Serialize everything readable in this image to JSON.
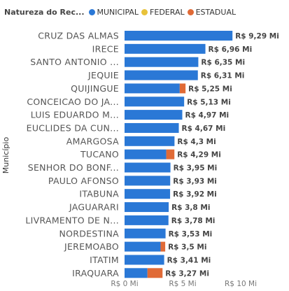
{
  "legend": {
    "title": "Natureza do Rec...",
    "items": [
      {
        "label": "MUNICIPAL",
        "color": "#2a78d6"
      },
      {
        "label": "FEDERAL",
        "color": "#e8c23a"
      },
      {
        "label": "ESTADUAL",
        "color": "#e06a36"
      }
    ]
  },
  "chart_data": {
    "type": "bar",
    "orientation": "horizontal",
    "stacked": true,
    "ylabel": "Município",
    "xlabel": "",
    "xlim": [
      0,
      10
    ],
    "xticks": [
      {
        "value": 0,
        "label": "R$ 0 Mi"
      },
      {
        "value": 5,
        "label": "R$ 5 Mi"
      },
      {
        "value": 10,
        "label": "R$ 10 Mi"
      }
    ],
    "grid": false,
    "legend_position": "top-left",
    "categories": [
      "CRUZ DAS ALMAS",
      "IRECE",
      "SANTO ANTONIO ...",
      "JEQUIE",
      "QUIJINGUE",
      "CONCEICAO DO JA...",
      "LUIS EDUARDO M...",
      "EUCLIDES DA CUN...",
      "AMARGOSA",
      "TUCANO",
      "SENHOR DO BONF...",
      "PAULO AFONSO",
      "ITABUNA",
      "JAGUARARI",
      "LIVRAMENTO DE N...",
      "NORDESTINA",
      "JEREMOABO",
      "ITATIM",
      "IRAQUARA"
    ],
    "series": [
      {
        "name": "MUNICIPAL",
        "color": "#2a78d6",
        "values": [
          9.29,
          6.96,
          6.35,
          6.31,
          4.75,
          5.13,
          4.97,
          4.67,
          4.3,
          3.59,
          3.95,
          3.93,
          3.92,
          3.8,
          3.78,
          3.53,
          3.1,
          3.41,
          1.97
        ]
      },
      {
        "name": "FEDERAL",
        "color": "#e8c23a",
        "values": [
          0,
          0,
          0,
          0,
          0,
          0,
          0,
          0,
          0,
          0,
          0,
          0,
          0,
          0,
          0,
          0,
          0,
          0,
          0
        ]
      },
      {
        "name": "ESTADUAL",
        "color": "#e06a36",
        "values": [
          0,
          0,
          0,
          0,
          0.5,
          0,
          0,
          0,
          0,
          0.7,
          0,
          0,
          0,
          0,
          0,
          0,
          0.4,
          0,
          1.3
        ]
      }
    ],
    "totals_labels": [
      "R$ 9,29 Mi",
      "R$ 6,96 Mi",
      "R$ 6,35 Mi",
      "R$ 6,31 Mi",
      "R$ 5,25 Mi",
      "R$ 5,13 Mi",
      "R$ 4,97 Mi",
      "R$ 4,67 Mi",
      "R$ 4,3 Mi",
      "R$ 4,29 Mi",
      "R$ 3,95 Mi",
      "R$ 3,93 Mi",
      "R$ 3,92 Mi",
      "R$ 3,8 Mi",
      "R$ 3,78 Mi",
      "R$ 3,53 Mi",
      "R$ 3,5 Mi",
      "R$ 3,41 Mi",
      "R$ 3,27 Mi"
    ]
  }
}
